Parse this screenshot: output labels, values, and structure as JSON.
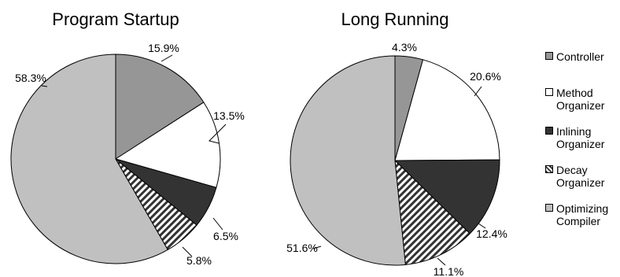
{
  "chart_data": [
    {
      "type": "pie",
      "title": "Program Startup",
      "start_angle_deg": 0,
      "direction": "clockwise",
      "slices": [
        {
          "name": "Controller",
          "value": 15.9,
          "label": "15.9%"
        },
        {
          "name": "Method Organizer",
          "value": 13.5,
          "label": "13.5%"
        },
        {
          "name": "Inlining Organizer",
          "value": 6.5,
          "label": "6.5%"
        },
        {
          "name": "Decay Organizer",
          "value": 5.8,
          "label": "5.8%"
        },
        {
          "name": "Optimizing Compiler",
          "value": 58.3,
          "label": "58.3%"
        }
      ]
    },
    {
      "type": "pie",
      "title": "Long Running",
      "start_angle_deg": 0,
      "direction": "clockwise",
      "slices": [
        {
          "name": "Controller",
          "value": 4.3,
          "label": "4.3%"
        },
        {
          "name": "Method Organizer",
          "value": 20.6,
          "label": "20.6%"
        },
        {
          "name": "Inlining Organizer",
          "value": 12.4,
          "label": "12.4%"
        },
        {
          "name": "Decay Organizer",
          "value": 11.1,
          "label": "11.1%"
        },
        {
          "name": "Optimizing Compiler",
          "value": 51.6,
          "label": "51.6%"
        }
      ]
    }
  ],
  "legend": {
    "placement": "right",
    "items": [
      {
        "key": "controller",
        "lines": [
          "Controller"
        ],
        "fill": "#969696"
      },
      {
        "key": "method",
        "lines": [
          "Method",
          "Organizer"
        ],
        "fill": "#ffffff"
      },
      {
        "key": "inlining",
        "lines": [
          "Inlining",
          "Organizer"
        ],
        "fill": "#333333"
      },
      {
        "key": "decay",
        "lines": [
          "Decay",
          "Organizer"
        ],
        "fill": "hatch"
      },
      {
        "key": "compiler",
        "lines": [
          "Optimizing",
          "Compiler"
        ],
        "fill": "#c0c0c0"
      }
    ]
  },
  "colors": {
    "controller": "#969696",
    "method": "#ffffff",
    "inlining": "#333333",
    "decay_stripe": "#333333",
    "decay_bg": "#ffffff",
    "compiler": "#c0c0c0",
    "outline": "#000000"
  }
}
